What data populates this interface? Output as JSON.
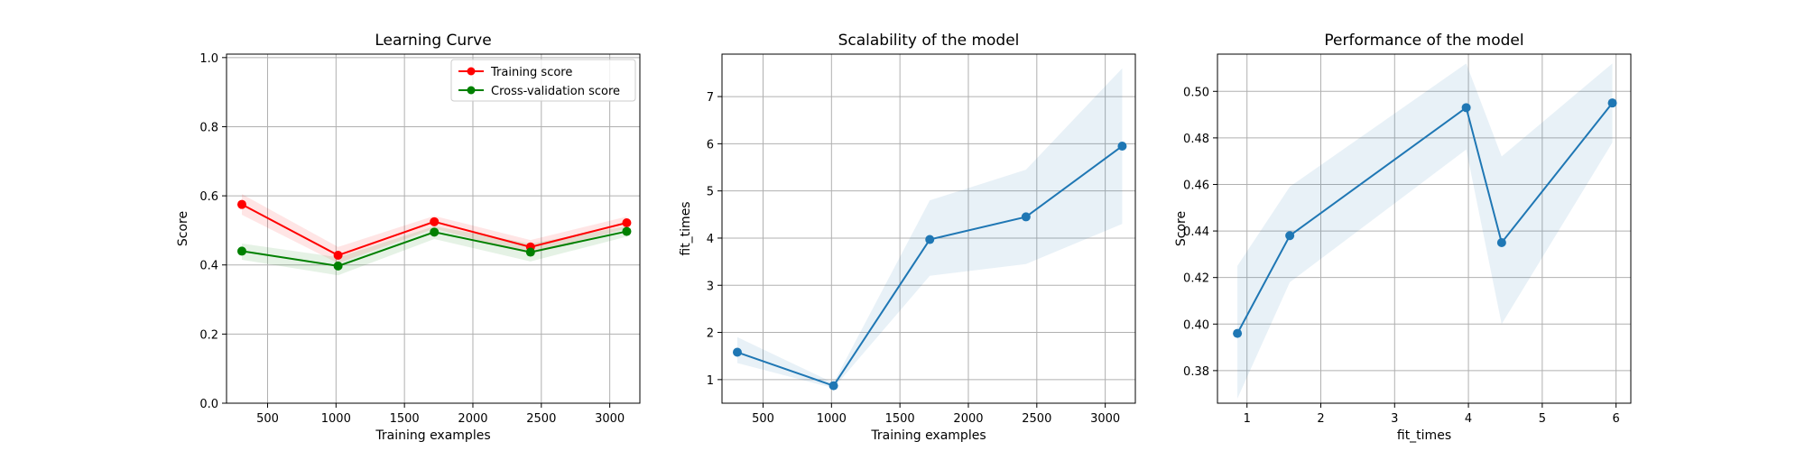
{
  "chart_data": [
    {
      "type": "line",
      "title": "Learning Curve",
      "xlabel": "Training examples",
      "ylabel": "Score",
      "xlim": [
        200,
        3220
      ],
      "ylim": [
        0.0,
        1.01
      ],
      "xticks": [
        500,
        1000,
        1500,
        2000,
        2500,
        3000
      ],
      "yticks": [
        0.0,
        0.2,
        0.4,
        0.6,
        0.8,
        1.0
      ],
      "grid": true,
      "legend": "top-right",
      "x": [
        312,
        1015,
        1718,
        2421,
        3124
      ],
      "series": [
        {
          "name": "Training score",
          "color": "#ff0000",
          "band_color": "#ff0000",
          "values": [
            0.575,
            0.428,
            0.525,
            0.452,
            0.522
          ],
          "lower": [
            0.545,
            0.405,
            0.505,
            0.432,
            0.505
          ],
          "upper": [
            0.605,
            0.452,
            0.542,
            0.472,
            0.54
          ]
        },
        {
          "name": "Cross-validation score",
          "color": "#008000",
          "band_color": "#008000",
          "values": [
            0.44,
            0.397,
            0.495,
            0.437,
            0.497
          ],
          "lower": [
            0.415,
            0.37,
            0.475,
            0.41,
            0.482
          ],
          "upper": [
            0.462,
            0.422,
            0.512,
            0.462,
            0.512
          ]
        }
      ]
    },
    {
      "type": "line",
      "title": "Scalability of the model",
      "xlabel": "Training examples",
      "ylabel": "fit_times",
      "xlim": [
        200,
        3220
      ],
      "ylim": [
        0.5,
        7.9
      ],
      "xticks": [
        500,
        1000,
        1500,
        2000,
        2500,
        3000
      ],
      "yticks": [
        1,
        2,
        3,
        4,
        5,
        6,
        7
      ],
      "grid": true,
      "x": [
        312,
        1015,
        1718,
        2421,
        3124
      ],
      "series": [
        {
          "color": "#1f77b4",
          "band_color": "#1f77b4",
          "values": [
            1.58,
            0.87,
            3.97,
            4.45,
            5.95
          ],
          "lower": [
            1.35,
            0.82,
            3.2,
            3.45,
            4.3
          ],
          "upper": [
            1.9,
            0.93,
            4.8,
            5.45,
            7.6
          ]
        }
      ]
    },
    {
      "type": "line",
      "title": "Performance of the model",
      "xlabel": "fit_times",
      "ylabel": "Score",
      "xlim": [
        0.6,
        6.2
      ],
      "ylim": [
        0.366,
        0.516
      ],
      "xticks": [
        1,
        2,
        3,
        4,
        5,
        6
      ],
      "yticks": [
        0.38,
        0.4,
        0.42,
        0.44,
        0.46,
        0.48,
        0.5
      ],
      "grid": true,
      "x": [
        0.87,
        1.58,
        3.97,
        4.45,
        5.95
      ],
      "series": [
        {
          "color": "#1f77b4",
          "band_color": "#1f77b4",
          "values": [
            0.396,
            0.438,
            0.493,
            0.435,
            0.495
          ],
          "lower": [
            0.368,
            0.418,
            0.475,
            0.4,
            0.478
          ],
          "upper": [
            0.425,
            0.459,
            0.512,
            0.472,
            0.512
          ]
        }
      ]
    }
  ]
}
